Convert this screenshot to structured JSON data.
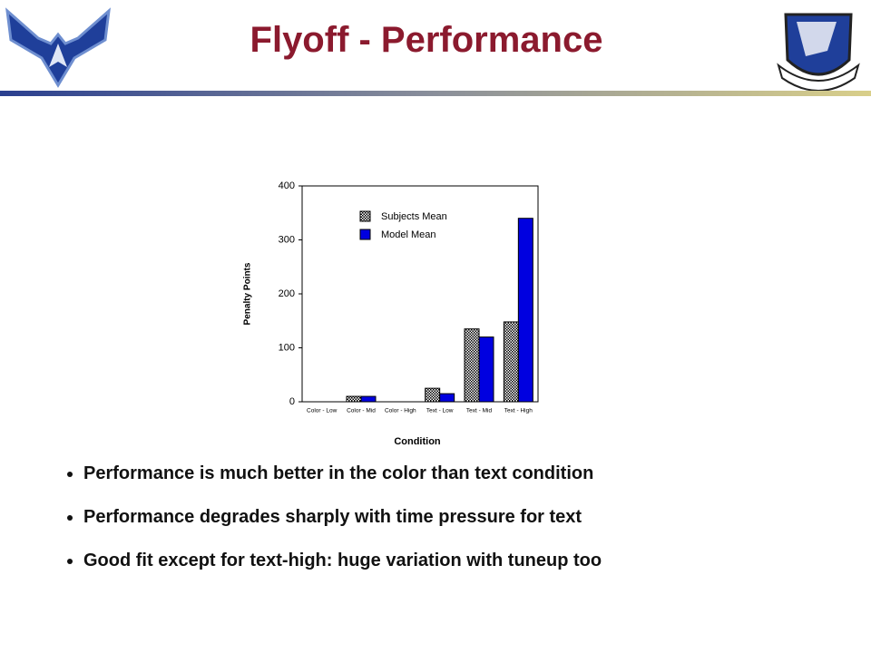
{
  "slide": {
    "title": "Flyoff - Performance",
    "bullets": [
      "Performance is much better in the color than text condition",
      "Performance degrades sharply with time pressure for text",
      "Good fit except for text-high: huge variation with tuneup too"
    ]
  },
  "chart_data": {
    "type": "bar",
    "x_label": "Condition",
    "y_label": "Penalty Points",
    "categories": [
      "Color - Low",
      "Color - Mid",
      "Color - High",
      "Text - Low",
      "Text - Mid",
      "Text - High"
    ],
    "series": [
      {
        "name": "Subjects Mean",
        "color": "#000000",
        "pattern": "dots",
        "values": [
          0,
          10,
          0,
          25,
          135,
          148
        ]
      },
      {
        "name": "Model Mean",
        "color": "#0000e0",
        "values": [
          0,
          10,
          0,
          15,
          120,
          340
        ]
      }
    ],
    "ylim": [
      0,
      400
    ],
    "yticks": [
      0,
      100,
      200,
      300,
      400
    ],
    "legend": "upper left"
  }
}
